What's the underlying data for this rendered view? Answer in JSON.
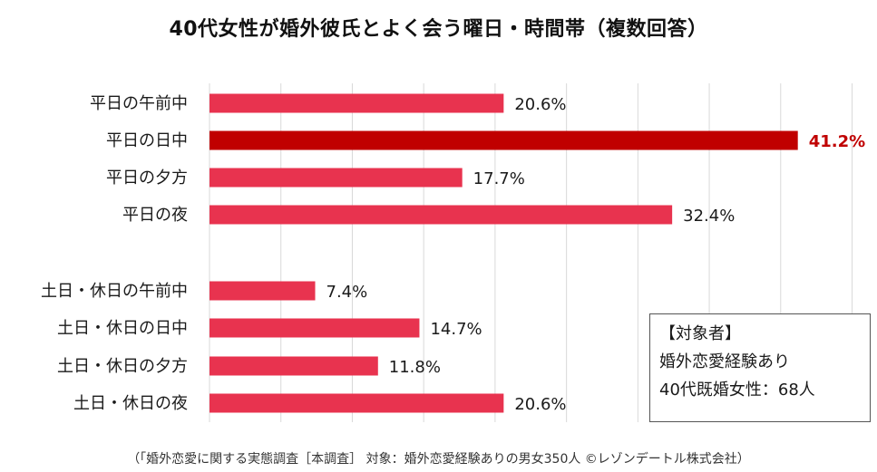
{
  "title": "40代女性が婚外彼氏とよく会う曜日・時間帯（複数回答）",
  "chart_data": {
    "type": "bar",
    "orientation": "horizontal",
    "title": "40代女性が婚外彼氏とよく会う曜日・時間帯（複数回答）",
    "categories": [
      "平日の午前中",
      "平日の日中",
      "平日の夕方",
      "平日の夜",
      "土日・休日の午前中",
      "土日・休日の日中",
      "土日・休日の夕方",
      "土日・休日の夜"
    ],
    "values": [
      20.6,
      41.2,
      17.7,
      32.4,
      7.4,
      14.7,
      11.8,
      20.6
    ],
    "value_labels": [
      "20.6%",
      "41.2%",
      "17.7%",
      "32.4%",
      "7.4%",
      "14.7%",
      "11.8%",
      "20.6%"
    ],
    "unit": "%",
    "highlight_index": 1,
    "xlim": [
      0,
      45
    ],
    "grid_step": 5,
    "grid": true,
    "colors": {
      "bar": "#e8334f",
      "highlight": "#c00000",
      "highlight_label": "#c00000",
      "grid": "#d9d9d9"
    }
  },
  "note": {
    "heading": "【対象者】",
    "line1": "婚外恋愛経験あり",
    "line2": "40代既婚女性：68人"
  },
  "footer": "（「婚外恋愛に関する実態調査［本調査］ 対象：婚外恋愛経験ありの男女350人 ©レゾンデートル株式会社）"
}
